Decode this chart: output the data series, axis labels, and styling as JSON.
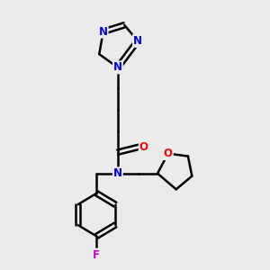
{
  "background_color": "#ebebeb",
  "bond_color": "#000000",
  "atom_colors": {
    "N": "#0000ee",
    "O": "#ff0000",
    "F": "#cc00cc",
    "C": "#000000"
  },
  "line_width": 1.8,
  "font_size": 8.5,
  "fig_size": [
    3.0,
    3.0
  ],
  "dpi": 100
}
